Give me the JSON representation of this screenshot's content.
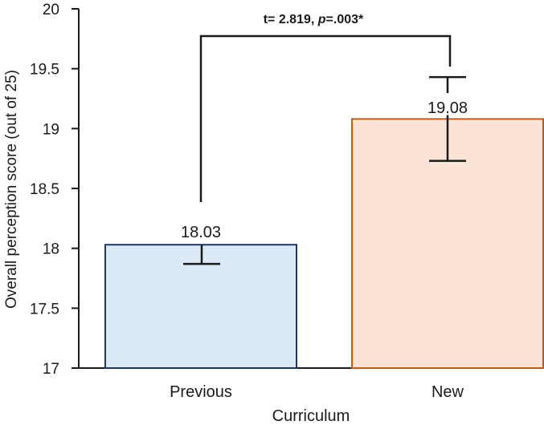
{
  "chart_data": {
    "type": "bar",
    "categories": [
      "Previous",
      "New"
    ],
    "values": [
      18.03,
      19.08
    ],
    "error_bars": [
      {
        "low": 17.87,
        "high": 18.19
      },
      {
        "low": 18.73,
        "high": 19.43
      }
    ],
    "data_labels": [
      "18.03",
      "19.08"
    ],
    "xlabel": "Curriculum",
    "ylabel": "Overall perception score (out of 25)",
    "ylim": [
      17,
      20
    ],
    "yticks": [
      17,
      17.5,
      18,
      18.5,
      19,
      19.5,
      20
    ],
    "ytick_labels": [
      "17",
      "17.5",
      "18",
      "18.5",
      "19",
      "19.5",
      "20"
    ],
    "grid": false,
    "bar_fill_colors": [
      "#dce9f7",
      "#fbe3d6"
    ],
    "bar_edge_colors": [
      "#1f3864",
      "#c55a11"
    ],
    "annotation": {
      "prefix": "t= 2.819, ",
      "p_symbol": "p",
      "suffix": "=.003*"
    }
  }
}
